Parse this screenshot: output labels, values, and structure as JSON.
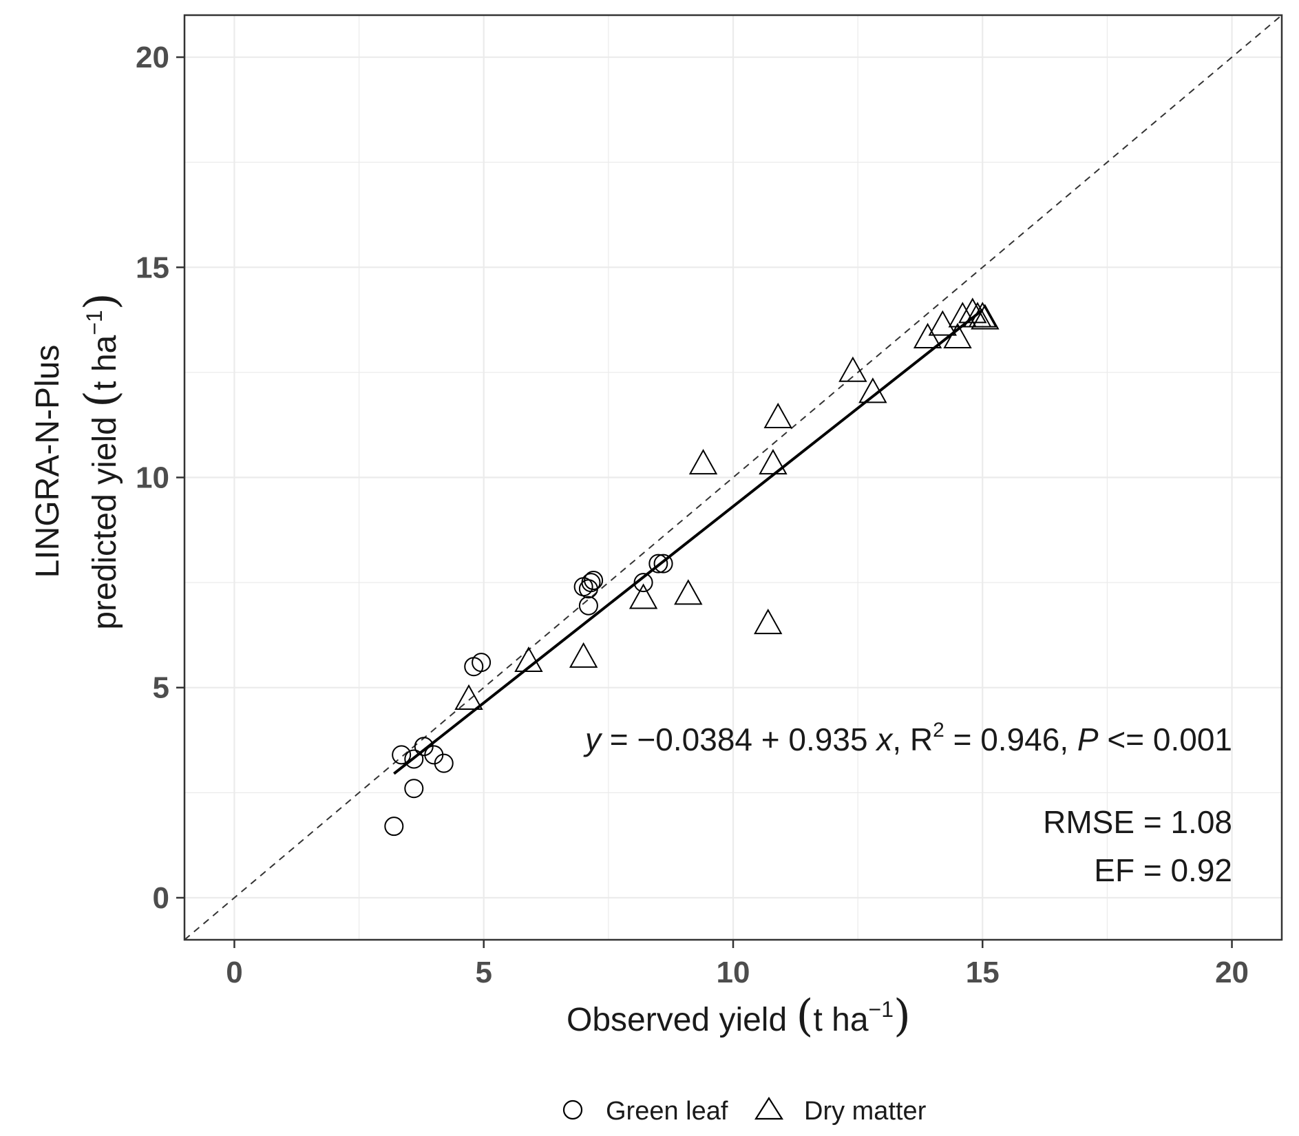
{
  "chart_data": {
    "type": "scatter",
    "xlabel": "Observed yield (t ha⁻¹)",
    "ylabel_line1": "LINGRA-N-Plus",
    "ylabel_line2": "predicted yield (t ha⁻¹)",
    "xlim": [
      -1,
      21
    ],
    "ylim": [
      -1,
      21
    ],
    "x_ticks": [
      0,
      5,
      10,
      15,
      20
    ],
    "y_ticks": [
      0,
      5,
      10,
      15,
      20
    ],
    "x_tick_labels": [
      "0",
      "5",
      "10",
      "15",
      "20"
    ],
    "y_tick_labels": [
      "0",
      "5",
      "10",
      "15",
      "20"
    ],
    "grid": true,
    "legend_position": "bottom",
    "series": [
      {
        "name": "Green leaf",
        "marker": "circle",
        "points": [
          [
            3.2,
            1.7
          ],
          [
            3.6,
            2.6
          ],
          [
            3.35,
            3.4
          ],
          [
            3.6,
            3.3
          ],
          [
            3.8,
            3.6
          ],
          [
            4.0,
            3.4
          ],
          [
            4.2,
            3.2
          ],
          [
            4.8,
            5.5
          ],
          [
            4.95,
            5.6
          ],
          [
            7.0,
            7.4
          ],
          [
            7.1,
            7.35
          ],
          [
            7.15,
            7.5
          ],
          [
            7.2,
            7.55
          ],
          [
            7.1,
            6.95
          ],
          [
            8.2,
            7.5
          ],
          [
            8.5,
            7.95
          ],
          [
            8.6,
            7.95
          ]
        ]
      },
      {
        "name": "Dry matter",
        "marker": "triangle",
        "points": [
          [
            4.7,
            4.7
          ],
          [
            5.9,
            5.6
          ],
          [
            7.0,
            5.7
          ],
          [
            8.2,
            7.1
          ],
          [
            9.1,
            7.2
          ],
          [
            9.4,
            10.3
          ],
          [
            10.7,
            6.5
          ],
          [
            10.8,
            10.3
          ],
          [
            10.9,
            11.4
          ],
          [
            12.4,
            12.5
          ],
          [
            12.8,
            12.0
          ],
          [
            13.9,
            13.3
          ],
          [
            14.2,
            13.6
          ],
          [
            14.5,
            13.3
          ],
          [
            14.6,
            13.8
          ],
          [
            14.8,
            13.9
          ],
          [
            14.9,
            13.8
          ],
          [
            15.0,
            13.8
          ],
          [
            15.05,
            13.75
          ]
        ]
      }
    ],
    "regression": {
      "intercept": -0.0384,
      "slope": 0.935,
      "x_range": [
        3.2,
        15.0
      ]
    },
    "reference_line": "1:1 dashed",
    "annotations": {
      "equation_y": "y",
      "equation_eq1": " = −0.0384 + 0.935 ",
      "equation_x": "x",
      "equation_r": ", R",
      "equation_r_sup": "2",
      "equation_r_val": " = 0.946, ",
      "equation_p": "P",
      "equation_p_val": " <= 0.001",
      "rmse": "RMSE = 1.08",
      "ef": "EF = 0.92"
    },
    "colors": {
      "grid": "#ebebeb",
      "points": "#000000",
      "panel_border": "#333333"
    }
  }
}
